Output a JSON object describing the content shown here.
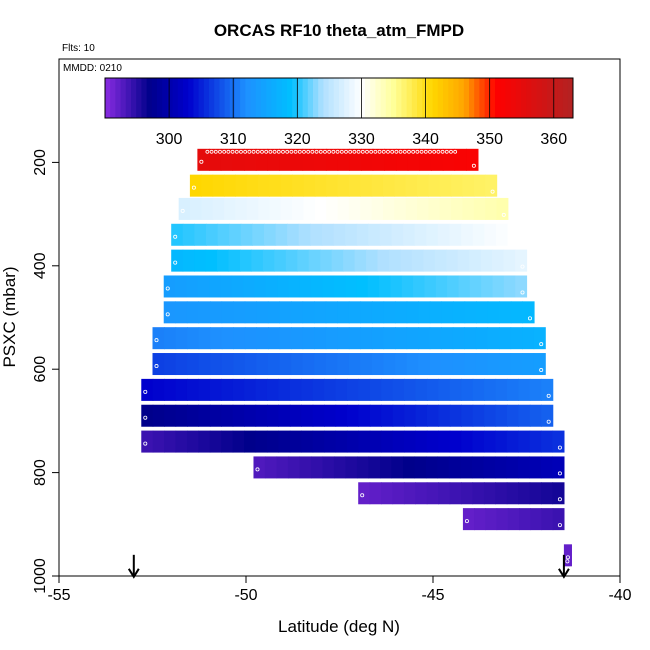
{
  "chart_data": {
    "type": "heatmap",
    "title": "ORCAS RF10 theta_atm_FMPD",
    "subtitle_flts": "Flts: 10",
    "subtitle_mmdd": "MMDD: 0210",
    "xlabel": "Latitude (deg N)",
    "ylabel": "PSXC (mbar)",
    "xlim": [
      -55,
      -40
    ],
    "ylim": [
      1000,
      0
    ],
    "x_ticks": [
      -55,
      -50,
      -45,
      -40
    ],
    "x_tick_labels": [
      "-55",
      "-50",
      "-45",
      "-40"
    ],
    "y_ticks": [
      200,
      400,
      600,
      800,
      1000
    ],
    "y_tick_labels": [
      "200",
      "400",
      "600",
      "800",
      "1000"
    ],
    "colorbar": {
      "min": 290,
      "max": 363,
      "ticks": [
        300,
        310,
        320,
        330,
        340,
        350,
        360
      ],
      "tick_labels": [
        "300",
        "310",
        "320",
        "330",
        "340",
        "350",
        "360"
      ],
      "palette": [
        "#8a2be2",
        "#00008b",
        "#0000cd",
        "#1e90ff",
        "#00bfff",
        "#b0e0ff",
        "#ffffff",
        "#ffff99",
        "#ffd700",
        "#ffa500",
        "#ff0000",
        "#b22222"
      ],
      "palette_stops": [
        290,
        297,
        303,
        312,
        319,
        324,
        330,
        335,
        341,
        346,
        351,
        363
      ]
    },
    "arrows_latitude": [
      -53.0,
      -41.5
    ],
    "arrows_pressure": 990,
    "rows": [
      {
        "p": 195,
        "lat_start": -51.3,
        "lat_end": -43.8,
        "theta_start": 355,
        "theta_end": 352
      },
      {
        "p": 245,
        "lat_start": -51.5,
        "lat_end": -43.3,
        "theta_start": 341,
        "theta_end": 337
      },
      {
        "p": 290,
        "lat_start": -51.8,
        "lat_end": -43.0,
        "theta_start": 327,
        "theta_end": 334
      },
      {
        "p": 340,
        "lat_start": -52.0,
        "lat_end": -42.7,
        "theta_start": 320,
        "theta_end": 330
      },
      {
        "p": 390,
        "lat_start": -52.0,
        "lat_end": -42.5,
        "theta_start": 318,
        "theta_end": 328
      },
      {
        "p": 440,
        "lat_start": -52.2,
        "lat_end": -42.5,
        "theta_start": 314,
        "theta_end": 323
      },
      {
        "p": 490,
        "lat_start": -52.2,
        "lat_end": -42.3,
        "theta_start": 313,
        "theta_end": 318
      },
      {
        "p": 540,
        "lat_start": -52.5,
        "lat_end": -42.0,
        "theta_start": 311,
        "theta_end": 317
      },
      {
        "p": 590,
        "lat_start": -52.5,
        "lat_end": -42.0,
        "theta_start": 307,
        "theta_end": 314
      },
      {
        "p": 640,
        "lat_start": -52.8,
        "lat_end": -41.8,
        "theta_start": 303,
        "theta_end": 311
      },
      {
        "p": 690,
        "lat_start": -52.8,
        "lat_end": -41.8,
        "theta_start": 297,
        "theta_end": 309
      },
      {
        "p": 740,
        "lat_start": -52.8,
        "lat_end": -41.5,
        "theta_start": 294,
        "theta_end": 306
      },
      {
        "p": 790,
        "lat_start": -49.8,
        "lat_end": -41.5,
        "theta_start": 293,
        "theta_end": 301
      },
      {
        "p": 840,
        "lat_start": -47.0,
        "lat_end": -41.5,
        "theta_start": 292,
        "theta_end": 296
      },
      {
        "p": 890,
        "lat_start": -44.2,
        "lat_end": -41.5,
        "theta_start": 292,
        "theta_end": 294
      },
      {
        "p": 960,
        "lat_start": -41.5,
        "lat_end": -41.3,
        "theta_start": 292,
        "theta_end": 292
      }
    ]
  }
}
